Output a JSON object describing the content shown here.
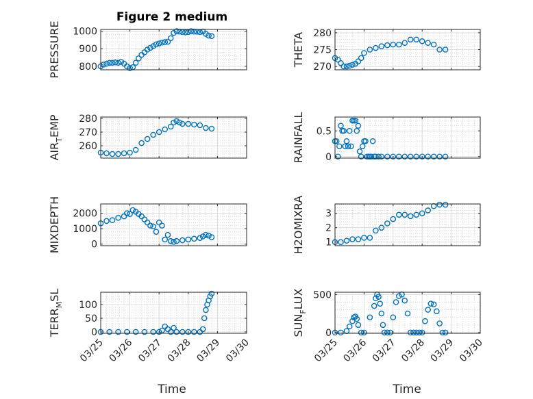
{
  "figure_title": "Figure 2 medium",
  "marker_color": "#0072bd",
  "xlabel": "Time",
  "xtick_labels": [
    "03/25",
    "03/26",
    "03/27",
    "03/28",
    "03/29",
    "03/30"
  ],
  "chart_data": [
    {
      "type": "scatter",
      "ylabel": "PRESSURE",
      "ylim": [
        780,
        1010
      ],
      "yticks": [
        800,
        900,
        1000
      ],
      "x": [
        0,
        0.1,
        0.2,
        0.3,
        0.4,
        0.5,
        0.6,
        0.7,
        0.8,
        0.9,
        1.0,
        1.1,
        1.2,
        1.3,
        1.4,
        1.5,
        1.6,
        1.7,
        1.8,
        1.9,
        2.0,
        2.1,
        2.2,
        2.3,
        2.4,
        2.5,
        2.6,
        2.7,
        2.8,
        2.9,
        3.0,
        3.1,
        3.2,
        3.3,
        3.4,
        3.5,
        3.6,
        3.7,
        3.8
      ],
      "y": [
        800,
        810,
        815,
        820,
        820,
        822,
        820,
        825,
        815,
        800,
        790,
        795,
        820,
        845,
        865,
        880,
        895,
        905,
        915,
        925,
        930,
        935,
        938,
        940,
        960,
        990,
        1000,
        998,
        995,
        993,
        995,
        1000,
        998,
        997,
        995,
        998,
        985,
        975,
        972
      ]
    },
    {
      "type": "scatter",
      "ylabel": "THETA",
      "ylim": [
        269,
        281
      ],
      "yticks": [
        270,
        275,
        280
      ],
      "x": [
        0,
        0.1,
        0.2,
        0.3,
        0.4,
        0.5,
        0.6,
        0.7,
        0.8,
        0.9,
        1.0,
        1.2,
        1.4,
        1.6,
        1.8,
        2.0,
        2.2,
        2.4,
        2.6,
        2.8,
        3.0,
        3.2,
        3.4,
        3.6,
        3.8
      ],
      "y": [
        272.5,
        272,
        271,
        270,
        270,
        270.2,
        270.5,
        270.8,
        271.5,
        272.5,
        274,
        275,
        275.5,
        276,
        276.3,
        276.5,
        276.5,
        277,
        278,
        278,
        277.5,
        277,
        276.5,
        275,
        275
      ]
    },
    {
      "type": "scatter",
      "ylabel": "AIR_TEMP",
      "ylim": [
        251,
        281
      ],
      "yticks": [
        260,
        270,
        280
      ],
      "x": [
        0,
        0.2,
        0.4,
        0.6,
        0.8,
        1.0,
        1.2,
        1.4,
        1.6,
        1.8,
        2.0,
        2.2,
        2.4,
        2.5,
        2.6,
        2.7,
        2.8,
        3.0,
        3.2,
        3.4,
        3.6,
        3.8
      ],
      "y": [
        255,
        254.5,
        254,
        254,
        254.5,
        255,
        257,
        262,
        265,
        268,
        270,
        272,
        274,
        277,
        278,
        277,
        276,
        276,
        275.5,
        275,
        273,
        272.5
      ]
    },
    {
      "type": "scatter",
      "ylabel": "RAINFALL",
      "ylim": [
        -0.03,
        0.77
      ],
      "yticks": [
        0,
        0.5
      ],
      "x": [
        0,
        0.05,
        0.1,
        0.15,
        0.2,
        0.25,
        0.3,
        0.35,
        0.4,
        0.45,
        0.5,
        0.55,
        0.6,
        0.65,
        0.7,
        0.75,
        0.8,
        0.85,
        0.9,
        0.95,
        1.0,
        1.05,
        1.1,
        1.15,
        1.2,
        1.25,
        1.3,
        1.35,
        1.4,
        1.5,
        1.6,
        1.8,
        2.0,
        2.2,
        2.4,
        2.6,
        2.8,
        3.0,
        3.2,
        3.4,
        3.6,
        3.8
      ],
      "y": [
        0.3,
        0.3,
        0,
        0.2,
        0.6,
        0.5,
        0.5,
        0.2,
        0.3,
        0.2,
        0.5,
        0.2,
        0.7,
        0.7,
        0.7,
        0.5,
        0.6,
        0.1,
        0,
        0.2,
        0.3,
        0.3,
        0,
        0,
        0,
        0,
        0.3,
        0,
        0,
        0,
        0,
        0,
        0,
        0,
        0,
        0,
        0,
        0,
        0,
        0,
        0,
        0
      ]
    },
    {
      "type": "scatter",
      "ylabel": "MIXDEPTH",
      "ylim": [
        -100,
        2600
      ],
      "yticks": [
        0,
        1000,
        2000
      ],
      "x": [
        0,
        0.2,
        0.4,
        0.6,
        0.8,
        0.9,
        1.0,
        1.1,
        1.2,
        1.3,
        1.4,
        1.5,
        1.6,
        1.7,
        1.8,
        1.9,
        2.0,
        2.1,
        2.2,
        2.3,
        2.4,
        2.5,
        2.6,
        2.8,
        3.0,
        3.2,
        3.4,
        3.5,
        3.6,
        3.7,
        3.8
      ],
      "y": [
        1350,
        1500,
        1550,
        1700,
        1800,
        2000,
        1950,
        2200,
        2100,
        1950,
        1800,
        1600,
        1400,
        1200,
        1150,
        800,
        1400,
        1200,
        300,
        600,
        200,
        150,
        200,
        250,
        300,
        350,
        400,
        500,
        600,
        550,
        450
      ]
    },
    {
      "type": "scatter",
      "ylabel": "H2OMIXRA",
      "ylim": [
        0.75,
        3.65
      ],
      "yticks": [
        1,
        2,
        3
      ],
      "x": [
        0,
        0.2,
        0.4,
        0.6,
        0.8,
        1.0,
        1.2,
        1.4,
        1.6,
        1.8,
        2.0,
        2.2,
        2.4,
        2.6,
        2.8,
        3.0,
        3.2,
        3.4,
        3.6,
        3.8
      ],
      "y": [
        1.0,
        1.0,
        1.1,
        1.2,
        1.2,
        1.3,
        1.3,
        1.8,
        2.0,
        2.3,
        2.6,
        2.9,
        2.9,
        2.8,
        2.9,
        3.0,
        3.2,
        3.5,
        3.6,
        3.6
      ]
    },
    {
      "type": "scatter",
      "ylabel": "TERR_MSL",
      "ylim": [
        -5,
        145
      ],
      "yticks": [
        0,
        50,
        100
      ],
      "x": [
        0,
        0.3,
        0.6,
        0.9,
        1.2,
        1.5,
        1.8,
        2.0,
        2.1,
        2.2,
        2.3,
        2.4,
        2.5,
        2.6,
        2.8,
        3.0,
        3.2,
        3.4,
        3.5,
        3.55,
        3.6,
        3.65,
        3.7,
        3.75,
        3.8
      ],
      "y": [
        0,
        0,
        0,
        0,
        0,
        0,
        0,
        0,
        5,
        20,
        10,
        0,
        15,
        0,
        0,
        0,
        0,
        0,
        10,
        50,
        80,
        100,
        115,
        130,
        140
      ]
    },
    {
      "type": "scatter",
      "ylabel": "SUN_FLUX",
      "ylim": [
        -10,
        530
      ],
      "yticks": [
        0,
        500
      ],
      "x": [
        0,
        0.2,
        0.4,
        0.5,
        0.6,
        0.65,
        0.7,
        0.75,
        0.8,
        0.9,
        1.0,
        1.2,
        1.35,
        1.4,
        1.45,
        1.5,
        1.55,
        1.6,
        1.65,
        1.7,
        1.8,
        1.9,
        2.0,
        2.1,
        2.2,
        2.3,
        2.4,
        2.5,
        2.6,
        2.7,
        2.8,
        2.9,
        3.0,
        3.1,
        3.2,
        3.3,
        3.4,
        3.5,
        3.6,
        3.7,
        3.8
      ],
      "y": [
        0,
        0,
        20,
        80,
        150,
        200,
        210,
        180,
        100,
        0,
        0,
        200,
        350,
        450,
        500,
        470,
        380,
        250,
        100,
        0,
        0,
        0,
        200,
        400,
        480,
        500,
        420,
        250,
        0,
        0,
        0,
        0,
        0,
        150,
        300,
        380,
        370,
        280,
        120,
        0,
        0
      ]
    }
  ]
}
